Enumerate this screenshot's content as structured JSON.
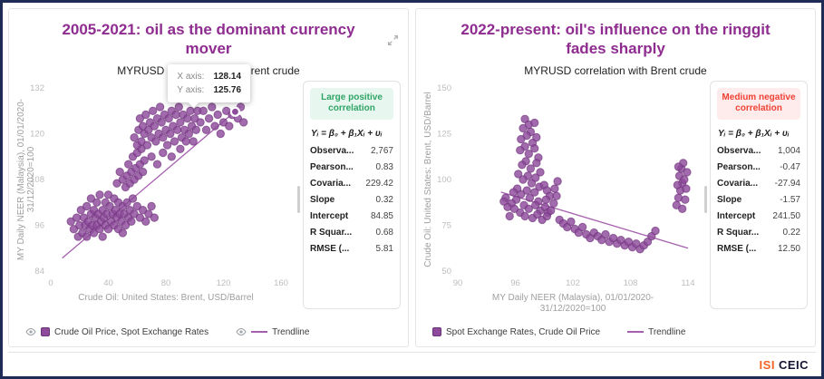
{
  "footer": {
    "brand_mark": "ISI",
    "brand_name": "CEIC"
  },
  "chart_data": [
    {
      "type": "scatter",
      "title": "2005-2021: oil as the dominant currency mover",
      "subtitle": "MYRUSD correlation with Brent crude",
      "xlabel_lines": [
        "Crude Oil: United States: Brent, USD/Barrel"
      ],
      "ylabel_lines": [
        "MY Daily NEER (Malaysia), 01/01/2020-",
        "31/12/2020=100"
      ],
      "x_range": [
        0,
        160
      ],
      "y_range": [
        84,
        132
      ],
      "x_ticks": [
        0,
        40,
        80,
        120,
        160
      ],
      "y_ticks": [
        84,
        96,
        108,
        120,
        132
      ],
      "grid": false,
      "trendline": {
        "slope": 0.32,
        "intercept": 84.85,
        "x_start": 8,
        "x_end": 132
      },
      "highlight": [
        128.14,
        125.76
      ],
      "tooltip": {
        "x_label": "X axis:",
        "x_value": "128.14",
        "y_label": "Y axis:",
        "y_value": "125.76"
      },
      "badge": "Large positive correlation",
      "formula": "Yᵢ = β₀ + β₁Xᵢ + υᵢ",
      "stats": [
        {
          "label": "Observa...",
          "value": "2,767"
        },
        {
          "label": "Pearson...",
          "value": "0.83"
        },
        {
          "label": "Covaria...",
          "value": "229.42"
        },
        {
          "label": "Slope",
          "value": "0.32"
        },
        {
          "label": "Intercept",
          "value": "84.85"
        },
        {
          "label": "R Squar...",
          "value": "0.68"
        },
        {
          "label": "RMSE (...",
          "value": "5.81"
        }
      ],
      "legend": [
        {
          "label": "Crude Oil Price, Spot Exchange Rates",
          "swatch": "square",
          "eye": true
        },
        {
          "label": "Trendline",
          "swatch": "line",
          "eye": true
        }
      ],
      "points": [
        [
          14,
          97
        ],
        [
          16,
          95
        ],
        [
          18,
          98
        ],
        [
          19,
          93
        ],
        [
          20,
          96
        ],
        [
          21,
          100
        ],
        [
          22,
          94
        ],
        [
          23,
          98
        ],
        [
          24,
          96
        ],
        [
          25,
          101
        ],
        [
          25,
          93
        ],
        [
          26,
          97
        ],
        [
          27,
          95
        ],
        [
          28,
          99
        ],
        [
          28,
          103
        ],
        [
          29,
          96
        ],
        [
          30,
          94
        ],
        [
          30,
          100
        ],
        [
          31,
          98
        ],
        [
          32,
          96
        ],
        [
          32,
          102
        ],
        [
          33,
          99
        ],
        [
          34,
          95
        ],
        [
          34,
          104
        ],
        [
          35,
          97
        ],
        [
          36,
          100
        ],
        [
          36,
          93
        ],
        [
          37,
          98
        ],
        [
          38,
          96
        ],
        [
          38,
          102
        ],
        [
          39,
          99
        ],
        [
          40,
          95
        ],
        [
          40,
          104
        ],
        [
          41,
          101
        ],
        [
          42,
          97
        ],
        [
          43,
          99
        ],
        [
          44,
          96
        ],
        [
          44,
          103
        ],
        [
          45,
          100
        ],
        [
          46,
          98
        ],
        [
          47,
          95
        ],
        [
          47,
          102
        ],
        [
          48,
          99
        ],
        [
          49,
          97
        ],
        [
          50,
          101
        ],
        [
          50,
          94
        ],
        [
          51,
          99
        ],
        [
          52,
          96
        ],
        [
          53,
          102
        ],
        [
          54,
          98
        ],
        [
          55,
          100
        ],
        [
          56,
          97
        ],
        [
          57,
          103
        ],
        [
          58,
          99
        ],
        [
          60,
          101
        ],
        [
          62,
          98
        ],
        [
          64,
          100
        ],
        [
          66,
          97
        ],
        [
          68,
          99
        ],
        [
          70,
          101
        ],
        [
          72,
          98
        ],
        [
          46,
          107
        ],
        [
          48,
          110
        ],
        [
          50,
          108
        ],
        [
          52,
          106
        ],
        [
          53,
          109
        ],
        [
          54,
          112
        ],
        [
          55,
          107
        ],
        [
          56,
          110
        ],
        [
          57,
          114
        ],
        [
          58,
          108
        ],
        [
          59,
          111
        ],
        [
          60,
          115
        ],
        [
          61,
          109
        ],
        [
          62,
          112
        ],
        [
          63,
          116
        ],
        [
          64,
          110
        ],
        [
          65,
          113
        ],
        [
          58,
          119
        ],
        [
          60,
          117
        ],
        [
          61,
          121
        ],
        [
          62,
          124
        ],
        [
          63,
          118
        ],
        [
          64,
          122
        ],
        [
          65,
          120
        ],
        [
          66,
          125
        ],
        [
          67,
          117
        ],
        [
          68,
          121
        ],
        [
          69,
          123
        ],
        [
          70,
          119
        ],
        [
          70,
          114
        ],
        [
          71,
          126
        ],
        [
          72,
          122
        ],
        [
          73,
          118
        ],
        [
          74,
          124
        ],
        [
          74,
          112
        ],
        [
          75,
          120
        ],
        [
          76,
          127
        ],
        [
          77,
          123
        ],
        [
          78,
          119
        ],
        [
          78,
          115
        ],
        [
          79,
          125
        ],
        [
          80,
          121
        ],
        [
          81,
          117
        ],
        [
          82,
          124
        ],
        [
          83,
          120
        ],
        [
          84,
          126
        ],
        [
          84,
          114
        ],
        [
          85,
          122
        ],
        [
          86,
          118
        ],
        [
          87,
          125
        ],
        [
          88,
          121
        ],
        [
          89,
          127
        ],
        [
          90,
          123
        ],
        [
          90,
          116
        ],
        [
          91,
          119
        ],
        [
          92,
          125
        ],
        [
          93,
          121
        ],
        [
          94,
          118
        ],
        [
          95,
          124
        ],
        [
          96,
          120
        ],
        [
          97,
          126
        ],
        [
          98,
          122
        ],
        [
          99,
          118
        ],
        [
          100,
          124
        ],
        [
          101,
          121
        ],
        [
          102,
          126
        ],
        [
          104,
          123
        ],
        [
          106,
          126
        ],
        [
          108,
          121
        ],
        [
          110,
          124
        ],
        [
          112,
          127
        ],
        [
          114,
          122
        ],
        [
          116,
          125
        ],
        [
          118,
          120
        ],
        [
          120,
          123
        ],
        [
          122,
          126
        ],
        [
          124,
          122
        ],
        [
          126,
          125
        ],
        [
          128,
          126
        ],
        [
          130,
          124
        ],
        [
          132,
          127
        ],
        [
          134,
          123
        ]
      ]
    },
    {
      "type": "scatter",
      "title": "2022-present: oil's influence on the ringgit fades sharply",
      "subtitle": "MYRUSD correlation with Brent crude",
      "xlabel_lines": [
        "MY Daily NEER (Malaysia), 01/01/2020-",
        "31/12/2020=100"
      ],
      "ylabel_lines": [
        "Crude Oil: United States: Brent, USD/Barrel"
      ],
      "x_range": [
        90,
        114
      ],
      "y_range": [
        50,
        150
      ],
      "x_ticks": [
        90,
        96,
        102,
        108,
        114
      ],
      "y_ticks": [
        50,
        75,
        100,
        125,
        150
      ],
      "grid": false,
      "trendline": {
        "slope": -1.57,
        "intercept": 241.5,
        "x_start": 94.5,
        "x_end": 114
      },
      "badge": "Medium negative correlation",
      "formula": "Yᵢ = β₀ + β₁Xᵢ + υᵢ",
      "stats": [
        {
          "label": "Observa...",
          "value": "1,004"
        },
        {
          "label": "Pearson...",
          "value": "-0.47"
        },
        {
          "label": "Covaria...",
          "value": "-27.94"
        },
        {
          "label": "Slope",
          "value": "-1.57"
        },
        {
          "label": "Intercept",
          "value": "241.50"
        },
        {
          "label": "R Squar...",
          "value": "0.22"
        },
        {
          "label": "RMSE (...",
          "value": "12.50"
        }
      ],
      "legend": [
        {
          "label": "Spot Exchange Rates, Crude Oil Price",
          "swatch": "square",
          "eye": false
        },
        {
          "label": "Trendline",
          "swatch": "line",
          "eye": false
        }
      ],
      "points": [
        [
          97,
          133
        ],
        [
          97.4,
          130
        ],
        [
          96.8,
          128
        ],
        [
          97.6,
          126
        ],
        [
          98,
          131
        ],
        [
          97.2,
          124
        ],
        [
          96.6,
          122
        ],
        [
          97.8,
          120
        ],
        [
          98.2,
          123
        ],
        [
          97,
          118
        ],
        [
          96.5,
          116
        ],
        [
          97.4,
          114
        ],
        [
          98,
          117
        ],
        [
          98.4,
          112
        ],
        [
          97.1,
          110
        ],
        [
          96.7,
          108
        ],
        [
          97.6,
          106
        ],
        [
          98.2,
          109
        ],
        [
          98.6,
          104
        ],
        [
          97.3,
          102
        ],
        [
          96.8,
          100
        ],
        [
          97.7,
          98
        ],
        [
          98.1,
          101
        ],
        [
          98.5,
          96
        ],
        [
          97.2,
          94
        ],
        [
          96.6,
          92
        ],
        [
          97.5,
          90
        ],
        [
          98,
          93
        ],
        [
          98.4,
          88
        ],
        [
          99,
          97
        ],
        [
          99.3,
          94
        ],
        [
          99.6,
          91
        ],
        [
          99.2,
          89
        ],
        [
          96.9,
          86
        ],
        [
          97.4,
          84
        ],
        [
          98.1,
          86
        ],
        [
          98.6,
          83
        ],
        [
          99.1,
          85
        ],
        [
          99.4,
          82
        ],
        [
          96.5,
          82
        ],
        [
          97,
          80
        ],
        [
          97.8,
          79
        ],
        [
          98.3,
          81
        ],
        [
          98.8,
          78
        ],
        [
          99.3,
          80
        ],
        [
          99.7,
          83
        ],
        [
          100,
          87
        ],
        [
          100.3,
          91
        ],
        [
          100.1,
          95
        ],
        [
          100.4,
          99
        ],
        [
          96.2,
          95
        ],
        [
          96.3,
          103
        ],
        [
          96.1,
          89
        ],
        [
          95.8,
          93
        ],
        [
          95.6,
          87
        ],
        [
          95.9,
          84
        ],
        [
          95,
          90
        ],
        [
          95.2,
          85
        ],
        [
          95.4,
          80
        ],
        [
          94.8,
          88
        ],
        [
          100.6,
          78
        ],
        [
          101,
          76
        ],
        [
          101.4,
          74
        ],
        [
          101.8,
          77
        ],
        [
          102.2,
          73
        ],
        [
          102.6,
          71
        ],
        [
          103,
          74
        ],
        [
          103.4,
          70
        ],
        [
          103.8,
          68
        ],
        [
          104.2,
          71
        ],
        [
          104.6,
          69
        ],
        [
          105,
          67
        ],
        [
          105.4,
          70
        ],
        [
          105.8,
          66
        ],
        [
          106.2,
          68
        ],
        [
          106.6,
          65
        ],
        [
          107,
          67
        ],
        [
          107.4,
          64
        ],
        [
          107.8,
          66
        ],
        [
          108.2,
          63
        ],
        [
          108.6,
          65
        ],
        [
          109,
          62
        ],
        [
          109.4,
          64
        ],
        [
          109.8,
          66
        ],
        [
          110.2,
          69
        ],
        [
          110.6,
          72
        ],
        [
          112.8,
          86
        ],
        [
          113,
          90
        ],
        [
          113.2,
          94
        ],
        [
          113.4,
          98
        ],
        [
          113.1,
          102
        ],
        [
          113.3,
          106
        ],
        [
          113.5,
          109
        ],
        [
          113.6,
          100
        ],
        [
          113.8,
          95
        ],
        [
          113.7,
          89
        ],
        [
          113.4,
          84
        ],
        [
          113.9,
          104
        ],
        [
          112.9,
          97
        ],
        [
          113,
          107
        ]
      ]
    }
  ]
}
